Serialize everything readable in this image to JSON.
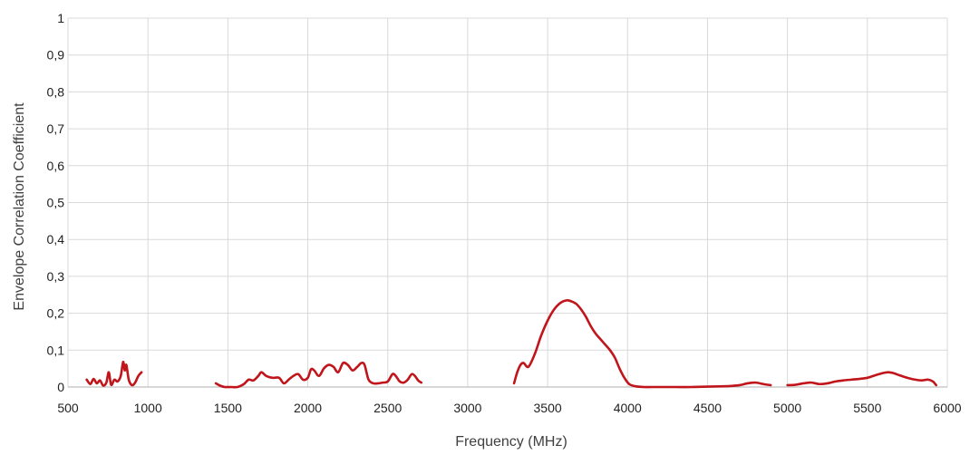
{
  "chart_data": {
    "type": "line",
    "title": "",
    "xlabel": "Frequency (MHz)",
    "ylabel": "Envelope Correlation Coefficient",
    "xlim": [
      500,
      6000
    ],
    "ylim": [
      0,
      1
    ],
    "x_ticks": [
      500,
      1000,
      1500,
      2000,
      2500,
      3000,
      3500,
      4000,
      4500,
      5000,
      5500,
      6000
    ],
    "x_tick_labels": [
      "500",
      "1000",
      "1500",
      "2000",
      "2500",
      "3000",
      "3500",
      "4000",
      "4500",
      "5000",
      "5500",
      "6000"
    ],
    "y_ticks": [
      0,
      0.1,
      0.2,
      0.3,
      0.4,
      0.5,
      0.6,
      0.7,
      0.8,
      0.9,
      1
    ],
    "y_tick_labels": [
      "0",
      "0,1",
      "0,2",
      "0,3",
      "0,4",
      "0,5",
      "0,6",
      "0,7",
      "0,8",
      "0,9",
      "1"
    ],
    "grid": {
      "vertical": true,
      "horizontal": true
    },
    "legend": "none",
    "colors": {
      "series": "#c0151b",
      "grid": "#d9d9d9",
      "axis": "#bfbfbf"
    },
    "series": [
      {
        "segments": [
          {
            "x": [
              617,
              640,
              660,
              680,
              700,
              720,
              740,
              755,
              770,
              790,
              810,
              830,
              845,
              855,
              865,
              880,
              900,
              920,
              940,
              960
            ],
            "y": [
              0.02,
              0.008,
              0.022,
              0.01,
              0.018,
              0.004,
              0.012,
              0.04,
              0.006,
              0.02,
              0.015,
              0.03,
              0.068,
              0.045,
              0.06,
              0.02,
              0.005,
              0.012,
              0.03,
              0.04
            ]
          },
          {
            "x": [
              1425,
              1450,
              1480,
              1520,
              1560,
              1600,
              1630,
              1660,
              1690,
              1710,
              1740,
              1780,
              1820,
              1850,
              1880,
              1910,
              1940,
              1970,
              2000,
              2020,
              2040,
              2070,
              2100,
              2130,
              2160,
              2190,
              2220,
              2250,
              2280,
              2310,
              2335,
              2355,
              2380,
              2410,
              2440,
              2470,
              2500,
              2530,
              2550,
              2575,
              2600,
              2625,
              2650,
              2670,
              2690,
              2710
            ],
            "y": [
              0.01,
              0.004,
              0.0,
              0.0,
              0.0,
              0.008,
              0.02,
              0.018,
              0.03,
              0.04,
              0.03,
              0.025,
              0.025,
              0.01,
              0.02,
              0.03,
              0.035,
              0.02,
              0.025,
              0.048,
              0.045,
              0.03,
              0.05,
              0.06,
              0.055,
              0.04,
              0.065,
              0.06,
              0.045,
              0.055,
              0.065,
              0.06,
              0.02,
              0.01,
              0.01,
              0.012,
              0.015,
              0.035,
              0.03,
              0.015,
              0.012,
              0.02,
              0.035,
              0.03,
              0.018,
              0.012
            ]
          },
          {
            "x": [
              3290,
              3310,
              3330,
              3350,
              3380,
              3420,
              3460,
              3500,
              3540,
              3580,
              3620,
              3650,
              3680,
              3710,
              3740,
              3770,
              3800,
              3830,
              3860,
              3890,
              3920,
              3950,
              3980,
              4010,
              4050,
              4100,
              4150,
              4200,
              4300,
              4400,
              4500,
              4600,
              4650,
              4700,
              4750,
              4800,
              4850,
              4895
            ],
            "y": [
              0.01,
              0.04,
              0.06,
              0.065,
              0.055,
              0.09,
              0.14,
              0.18,
              0.21,
              0.228,
              0.235,
              0.232,
              0.225,
              0.21,
              0.19,
              0.165,
              0.145,
              0.13,
              0.115,
              0.1,
              0.08,
              0.05,
              0.025,
              0.008,
              0.002,
              0.0,
              0.0,
              0.0,
              0.0,
              0.0,
              0.001,
              0.002,
              0.003,
              0.005,
              0.01,
              0.012,
              0.008,
              0.005
            ]
          },
          {
            "x": [
              5000,
              5050,
              5100,
              5150,
              5200,
              5250,
              5300,
              5350,
              5400,
              5450,
              5500,
              5550,
              5600,
              5630,
              5660,
              5700,
              5750,
              5800,
              5840,
              5880,
              5910,
              5930
            ],
            "y": [
              0.005,
              0.006,
              0.01,
              0.012,
              0.008,
              0.01,
              0.015,
              0.018,
              0.02,
              0.022,
              0.025,
              0.032,
              0.038,
              0.04,
              0.038,
              0.032,
              0.025,
              0.02,
              0.018,
              0.02,
              0.015,
              0.005
            ]
          }
        ]
      }
    ]
  }
}
